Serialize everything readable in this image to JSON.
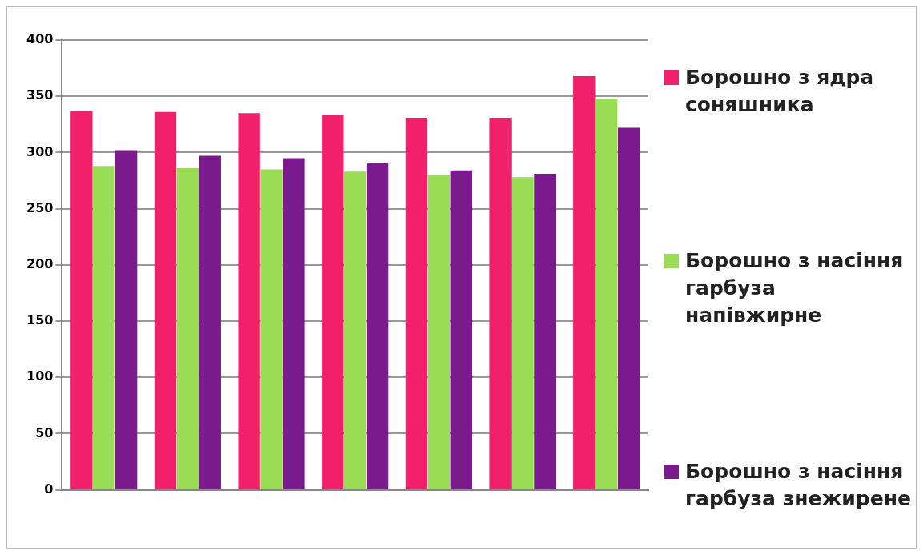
{
  "chart_data": {
    "type": "bar",
    "categories": [
      null,
      null,
      null,
      null,
      null,
      null,
      null
    ],
    "series": [
      {
        "name": "Борошно з ядра соняшника",
        "color": "#f21f6b",
        "values": [
          337,
          336,
          335,
          333,
          331,
          331,
          368
        ]
      },
      {
        "name": "Борошно з насіння гарбуза напівжирне",
        "color": "#99dd55",
        "values": [
          288,
          286,
          285,
          283,
          280,
          278,
          348
        ]
      },
      {
        "name": "Борошно з насіння гарбуза знежирене",
        "color": "#7a1a8c",
        "values": [
          302,
          297,
          295,
          291,
          284,
          281,
          322
        ]
      }
    ],
    "ylim": [
      0,
      400
    ],
    "yticks": [
      0,
      50,
      100,
      150,
      200,
      250,
      300,
      350,
      400
    ],
    "grid": "y",
    "legend": "right"
  }
}
